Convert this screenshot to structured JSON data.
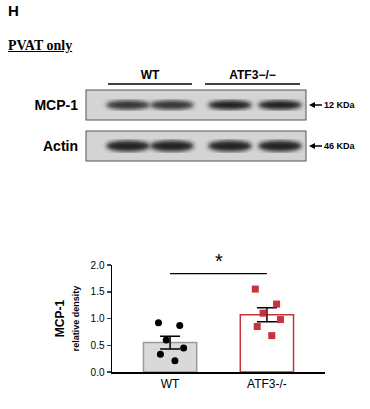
{
  "panel_label": "H",
  "heading": "PVAT only",
  "blot": {
    "groups": [
      "WT",
      "ATF3−/−"
    ],
    "rows": [
      {
        "label": "MCP-1",
        "size": "12 KDa"
      },
      {
        "label": "Actin",
        "size": "46 KDa"
      }
    ]
  },
  "chart_data": {
    "type": "bar",
    "categories": [
      "WT",
      "ATF3-/-"
    ],
    "values": [
      0.55,
      1.07
    ],
    "errors": [
      0.12,
      0.13
    ],
    "colors": [
      "#d9d9d9",
      "#ffffff"
    ],
    "points": [
      [
        0.92,
        0.87,
        0.6,
        0.45,
        0.33,
        0.21
      ],
      [
        1.55,
        1.27,
        1.1,
        0.98,
        0.85,
        0.68
      ]
    ],
    "point_colors": [
      "#000000",
      "#c8323c"
    ],
    "point_markers": [
      "circle",
      "square"
    ],
    "y_label": "MCP-1\nrelative density",
    "ylim": [
      0,
      2
    ],
    "yticks": [
      {
        "value": 0,
        "label": "0.0"
      },
      {
        "value": 0.5,
        "label": "0.5"
      },
      {
        "value": 1,
        "label": "1.0"
      },
      {
        "value": 1.5,
        "label": "1.5"
      },
      {
        "value": 2,
        "label": "2.0"
      }
    ],
    "grid": false,
    "significance": {
      "between": [
        "WT",
        "ATF3-/-"
      ],
      "label": "*"
    }
  }
}
